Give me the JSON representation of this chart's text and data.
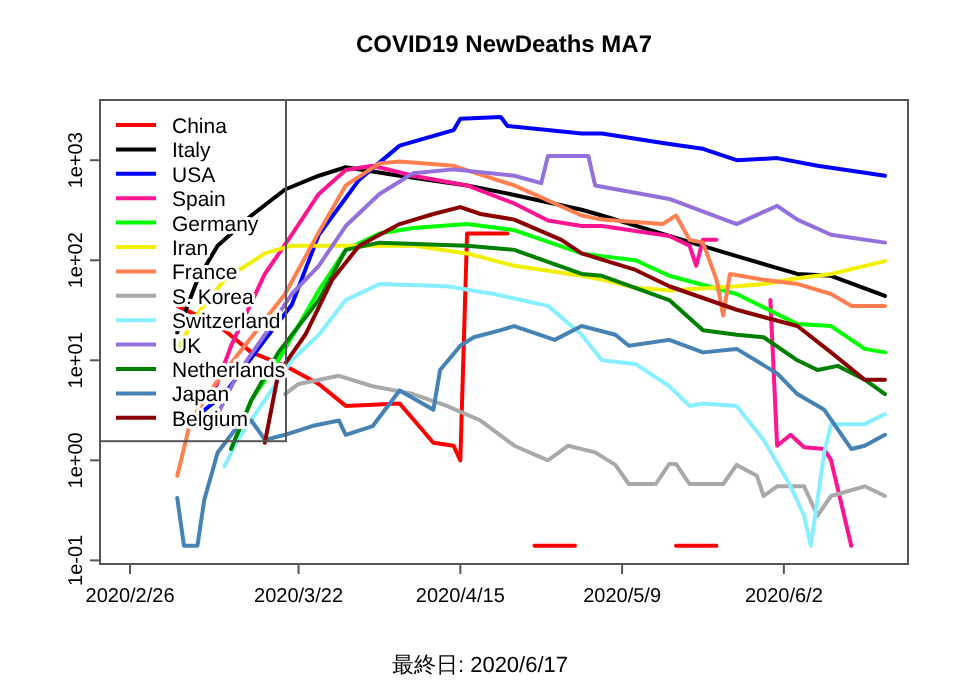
{
  "chart_data": {
    "type": "line",
    "title": "COVID19 NewDeaths MA7",
    "log": true,
    "legend": "top left",
    "marker": "none",
    "line_style": "solid",
    "grid": false,
    "xlim": [
      "2020-02-21T13:00",
      "2020-06-20T10:00"
    ],
    "ylim": [
      0.092,
      4000
    ],
    "xticks": [
      {
        "value": "2020-02-26",
        "label": "2020/2/26"
      },
      {
        "value": "2020-03-22",
        "label": "2020/3/22"
      },
      {
        "value": "2020-04-15",
        "label": "2020/4/15"
      },
      {
        "value": "2020-05-09",
        "label": "2020/5/9"
      },
      {
        "value": "2020-06-02",
        "label": "2020/6/2"
      }
    ],
    "yticks": [
      {
        "value": 0.1,
        "label": "1e-01"
      },
      {
        "value": 1,
        "label": "1e+00"
      },
      {
        "value": 10,
        "label": "1e+01"
      },
      {
        "value": 100,
        "label": "1e+02"
      },
      {
        "value": 1000,
        "label": "1e+03"
      }
    ],
    "annotations": [
      "最終日: 2020/6/17"
    ],
    "series": [
      {
        "name": "China",
        "color": "#ff0000",
        "x": [
          "2020-03-04",
          "2020-03-07",
          "2020-03-11",
          "2020-03-15",
          "2020-03-20",
          "2020-03-25",
          "2020-03-29",
          "2020-04-06",
          "2020-04-11",
          "2020-04-14",
          "2020-04-15",
          "2020-04-16",
          "2020-04-22",
          "2020-04-23",
          "2020-04-26",
          "2020-05-02",
          "2020-05-03",
          "2020-05-17",
          "2020-05-23"
        ],
        "values": [
          35,
          28,
          20,
          12,
          8.8,
          5.8,
          3.5,
          3.7,
          1.5,
          1.4,
          1.0,
          185,
          185,
          null,
          0.14,
          0.14,
          null,
          0.14,
          0.14
        ]
      },
      {
        "name": "Italy",
        "color": "#000000",
        "x": [
          "2020-03-04",
          "2020-03-07",
          "2020-03-10",
          "2020-03-15",
          "2020-03-20",
          "2020-03-25",
          "2020-03-29",
          "2020-04-06",
          "2020-04-16",
          "2020-04-23",
          "2020-05-03",
          "2020-05-06",
          "2020-05-16",
          "2020-05-26",
          "2020-06-04",
          "2020-06-09",
          "2020-06-17"
        ],
        "values": [
          19,
          64,
          140,
          280,
          510,
          700,
          850,
          700,
          560,
          450,
          320,
          280,
          175,
          110,
          73,
          70,
          44
        ]
      },
      {
        "name": "USA",
        "color": "#0000ff",
        "x": [
          "2020-03-07",
          "2020-03-11",
          "2020-03-17",
          "2020-03-21",
          "2020-03-25",
          "2020-03-31",
          "2020-04-06",
          "2020-04-14",
          "2020-04-15",
          "2020-04-21",
          "2020-04-22",
          "2020-05-03",
          "2020-05-06",
          "2020-05-16",
          "2020-05-21",
          "2020-05-26",
          "2020-06-01",
          "2020-06-07",
          "2020-06-17"
        ],
        "values": [
          2.8,
          4.6,
          16,
          36,
          180,
          640,
          1400,
          2000,
          2600,
          2700,
          2200,
          1850,
          1850,
          1450,
          1300,
          1000,
          1050,
          880,
          700
        ]
      },
      {
        "name": "Spain",
        "color": "#ff1493",
        "x": [
          "2020-03-09",
          "2020-03-12",
          "2020-03-17",
          "2020-03-21",
          "2020-03-25",
          "2020-03-29",
          "2020-04-02",
          "2020-04-08",
          "2020-04-16",
          "2020-04-23",
          "2020-04-28",
          "2020-05-03",
          "2020-05-06",
          "2020-05-16",
          "2020-05-19",
          "2020-05-20",
          "2020-05-21",
          "2020-05-23",
          "2020-05-27",
          "2020-05-31",
          "2020-06-01",
          "2020-06-03",
          "2020-06-05",
          "2020-06-08",
          "2020-06-09",
          "2020-06-12"
        ],
        "values": [
          4,
          14,
          73,
          180,
          460,
          800,
          880,
          700,
          560,
          370,
          250,
          220,
          220,
          175,
          140,
          88,
          160,
          160,
          null,
          40,
          1.4,
          1.8,
          1.35,
          1.3,
          1.0,
          0.14
        ]
      },
      {
        "name": "Germany",
        "color": "#00ff00",
        "x": [
          "2020-03-12",
          "2020-03-15",
          "2020-03-19",
          "2020-03-25",
          "2020-03-29",
          "2020-04-03",
          "2020-04-08",
          "2020-04-16",
          "2020-04-23",
          "2020-05-03",
          "2020-05-06",
          "2020-05-11",
          "2020-05-16",
          "2020-05-26",
          "2020-06-04",
          "2020-06-09",
          "2020-06-14",
          "2020-06-17"
        ],
        "values": [
          1.3,
          4,
          10,
          50,
          127,
          185,
          210,
          230,
          200,
          117,
          110,
          100,
          70,
          46,
          23,
          22,
          13,
          12
        ]
      },
      {
        "name": "Iran",
        "color": "#f0f000",
        "x": [
          "2020-03-04",
          "2020-03-07",
          "2020-03-11",
          "2020-03-17",
          "2020-03-21",
          "2020-03-29",
          "2020-04-08",
          "2020-04-16",
          "2020-04-23",
          "2020-05-03",
          "2020-05-06",
          "2020-05-11",
          "2020-05-16",
          "2020-05-26",
          "2020-05-30",
          "2020-06-04",
          "2020-06-09",
          "2020-06-17"
        ],
        "values": [
          13,
          29,
          64,
          117,
          140,
          140,
          140,
          117,
          88,
          70,
          64,
          53,
          50,
          55,
          58,
          66,
          73,
          98
        ]
      },
      {
        "name": "France",
        "color": "#ff7f50",
        "x": [
          "2020-03-04",
          "2020-03-06",
          "2020-03-10",
          "2020-03-15",
          "2020-03-20",
          "2020-03-25",
          "2020-03-29",
          "2020-04-03",
          "2020-04-06",
          "2020-04-14",
          "2020-04-23",
          "2020-05-03",
          "2020-05-06",
          "2020-05-15",
          "2020-05-17",
          "2020-05-19",
          "2020-05-21",
          "2020-05-23",
          "2020-05-24",
          "2020-05-25",
          "2020-05-30",
          "2020-06-04",
          "2020-06-09",
          "2020-06-12",
          "2020-06-17"
        ],
        "values": [
          0.7,
          2.5,
          6.3,
          17,
          46,
          190,
          560,
          930,
          970,
          880,
          560,
          280,
          255,
          230,
          280,
          160,
          150,
          64,
          28,
          73,
          64,
          58,
          46,
          35,
          35
        ]
      },
      {
        "name": "S. Korea",
        "color": "#a9a9a9",
        "x": [
          "2020-03-20",
          "2020-03-22",
          "2020-03-28",
          "2020-04-02",
          "2020-04-08",
          "2020-04-13",
          "2020-04-18",
          "2020-04-23",
          "2020-04-28",
          "2020-05-01",
          "2020-05-05",
          "2020-05-08",
          "2020-05-10",
          "2020-05-14",
          "2020-05-16",
          "2020-05-17",
          "2020-05-19",
          "2020-05-24",
          "2020-05-26",
          "2020-05-29",
          "2020-05-30",
          "2020-06-01",
          "2020-06-05",
          "2020-06-07",
          "2020-06-09",
          "2020-06-14",
          "2020-06-17"
        ],
        "values": [
          4.6,
          5.8,
          7,
          5.5,
          4.6,
          3.5,
          2.5,
          1.4,
          1.0,
          1.4,
          1.2,
          0.9,
          0.58,
          0.58,
          0.92,
          0.92,
          0.58,
          0.58,
          0.9,
          0.7,
          0.44,
          0.55,
          0.55,
          0.28,
          0.44,
          0.55,
          0.44
        ]
      },
      {
        "name": "Switzerland",
        "color": "#87efff",
        "x": [
          "2020-03-11",
          "2020-03-13",
          "2020-03-17",
          "2020-03-21",
          "2020-03-25",
          "2020-03-29",
          "2020-04-03",
          "2020-04-13",
          "2020-04-20",
          "2020-04-28",
          "2020-05-03",
          "2020-05-06",
          "2020-05-11",
          "2020-05-16",
          "2020-05-19",
          "2020-05-21",
          "2020-05-26",
          "2020-05-30",
          "2020-06-03",
          "2020-06-05",
          "2020-06-06",
          "2020-06-08",
          "2020-06-09",
          "2020-06-14",
          "2020-06-17"
        ],
        "values": [
          0.87,
          1.6,
          4,
          10,
          18,
          40,
          58,
          55,
          46,
          35,
          18,
          10,
          9.2,
          5.5,
          3.5,
          3.7,
          3.5,
          1.6,
          0.55,
          0.28,
          0.14,
          1.2,
          2.3,
          2.3,
          2.9
        ]
      },
      {
        "name": "UK",
        "color": "#9370db",
        "x": [
          "2020-03-10",
          "2020-03-13",
          "2020-03-17",
          "2020-03-21",
          "2020-03-25",
          "2020-03-29",
          "2020-04-03",
          "2020-04-08",
          "2020-04-14",
          "2020-04-23",
          "2020-04-27",
          "2020-04-28",
          "2020-05-04",
          "2020-05-05",
          "2020-05-16",
          "2020-05-26",
          "2020-06-01",
          "2020-06-04",
          "2020-06-09",
          "2020-06-17"
        ],
        "values": [
          2.9,
          7.4,
          18,
          46,
          88,
          220,
          460,
          740,
          810,
          700,
          590,
          1100,
          1100,
          560,
          410,
          230,
          350,
          255,
          180,
          150
        ]
      },
      {
        "name": "Netherlands",
        "color": "#008000",
        "x": [
          "2020-03-12",
          "2020-03-15",
          "2020-03-19",
          "2020-03-25",
          "2020-03-29",
          "2020-04-03",
          "2020-04-16",
          "2020-04-23",
          "2020-05-03",
          "2020-05-06",
          "2020-05-16",
          "2020-05-21",
          "2020-05-26",
          "2020-05-30",
          "2020-06-04",
          "2020-06-07",
          "2020-06-10",
          "2020-06-14",
          "2020-06-17"
        ],
        "values": [
          1.3,
          4,
          12,
          40,
          127,
          150,
          140,
          127,
          73,
          70,
          40,
          20,
          18,
          17,
          10,
          8,
          8.8,
          6.4,
          4.6
        ]
      },
      {
        "name": "Japan",
        "color": "#4682b4",
        "x": [
          "2020-03-04",
          "2020-03-05",
          "2020-03-07",
          "2020-03-08",
          "2020-03-10",
          "2020-03-13",
          "2020-03-15",
          "2020-03-17",
          "2020-03-20",
          "2020-03-24",
          "2020-03-28",
          "2020-03-29",
          "2020-04-02",
          "2020-04-06",
          "2020-04-11",
          "2020-04-12",
          "2020-04-15",
          "2020-04-17",
          "2020-04-21",
          "2020-04-23",
          "2020-04-29",
          "2020-05-03",
          "2020-05-08",
          "2020-05-10",
          "2020-05-16",
          "2020-05-21",
          "2020-05-26",
          "2020-06-01",
          "2020-06-04",
          "2020-06-08",
          "2020-06-12",
          "2020-06-14",
          "2020-06-17"
        ],
        "values": [
          0.42,
          0.14,
          0.14,
          0.4,
          1.2,
          2.2,
          2.5,
          1.6,
          1.8,
          2.2,
          2.5,
          1.8,
          2.2,
          5,
          3.2,
          8,
          14,
          17,
          20,
          22,
          16,
          22,
          18,
          14,
          16,
          12,
          13,
          7.4,
          4.6,
          3.2,
          1.3,
          1.4,
          1.8
        ]
      },
      {
        "name": "Belgium",
        "color": "#8b0000",
        "x": [
          "2020-03-17",
          "2020-03-19",
          "2020-03-23",
          "2020-03-27",
          "2020-03-31",
          "2020-04-06",
          "2020-04-11",
          "2020-04-15",
          "2020-04-18",
          "2020-04-23",
          "2020-04-30",
          "2020-05-03",
          "2020-05-11",
          "2020-05-16",
          "2020-05-26",
          "2020-06-04",
          "2020-06-09",
          "2020-06-14",
          "2020-06-17"
        ],
        "values": [
          1.5,
          7.4,
          18,
          64,
          140,
          230,
          290,
          340,
          290,
          255,
          160,
          117,
          80,
          55,
          32,
          22,
          12,
          6.4,
          6.4
        ]
      }
    ]
  }
}
